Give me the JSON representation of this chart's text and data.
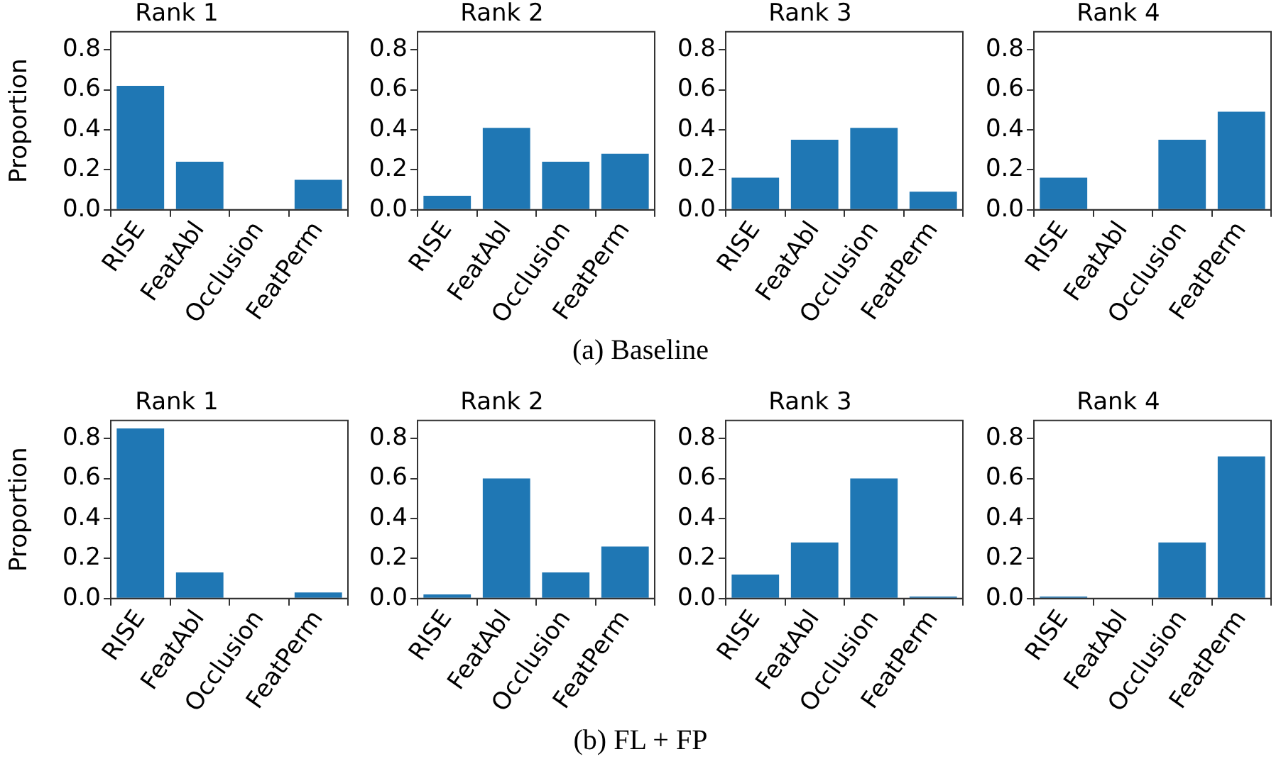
{
  "chart_data": [
    {
      "type": "bar",
      "title": "Rank 1",
      "ylabel": "Proportion",
      "categories": [
        "RISE",
        "FeatAbl",
        "Occlusion",
        "FeatPerm"
      ],
      "values": [
        0.62,
        0.24,
        0,
        0.15
      ],
      "color": "#1f77b4",
      "ylim": [
        0,
        0.89
      ],
      "yticks": [
        {
          "value": 0,
          "label": "0.0"
        },
        {
          "value": 0.2,
          "label": "0.2"
        },
        {
          "value": 0.4,
          "label": "0.4"
        },
        {
          "value": 0.6,
          "label": "0.6"
        },
        {
          "value": 0.8,
          "label": "0.8"
        }
      ]
    },
    {
      "type": "bar",
      "title": "Rank 2",
      "categories": [
        "RISE",
        "FeatAbl",
        "Occlusion",
        "FeatPerm"
      ],
      "values": [
        0.07,
        0.41,
        0.24,
        0.28
      ],
      "color": "#1f77b4",
      "ylim": [
        0,
        0.89
      ],
      "yticks": [
        {
          "value": 0,
          "label": "0.0"
        },
        {
          "value": 0.2,
          "label": "0.2"
        },
        {
          "value": 0.4,
          "label": "0.4"
        },
        {
          "value": 0.6,
          "label": "0.6"
        },
        {
          "value": 0.8,
          "label": "0.8"
        }
      ],
      "annotations": [
        "(a) Baseline"
      ]
    },
    {
      "type": "bar",
      "title": "Rank 3",
      "categories": [
        "RISE",
        "FeatAbl",
        "Occlusion",
        "FeatPerm"
      ],
      "values": [
        0.16,
        0.35,
        0.41,
        0.09
      ],
      "color": "#1f77b4",
      "ylim": [
        0,
        0.89
      ],
      "yticks": [
        {
          "value": 0,
          "label": "0.0"
        },
        {
          "value": 0.2,
          "label": "0.2"
        },
        {
          "value": 0.4,
          "label": "0.4"
        },
        {
          "value": 0.6,
          "label": "0.6"
        },
        {
          "value": 0.8,
          "label": "0.8"
        }
      ]
    },
    {
      "type": "bar",
      "title": "Rank 4",
      "categories": [
        "RISE",
        "FeatAbl",
        "Occlusion",
        "FeatPerm"
      ],
      "values": [
        0.16,
        0,
        0.35,
        0.49
      ],
      "color": "#1f77b4",
      "ylim": [
        0,
        0.89
      ],
      "yticks": [
        {
          "value": 0,
          "label": "0.0"
        },
        {
          "value": 0.2,
          "label": "0.2"
        },
        {
          "value": 0.4,
          "label": "0.4"
        },
        {
          "value": 0.6,
          "label": "0.6"
        },
        {
          "value": 0.8,
          "label": "0.8"
        }
      ]
    },
    {
      "type": "bar",
      "title": "Rank 1",
      "ylabel": "Proportion",
      "categories": [
        "RISE",
        "FeatAbl",
        "Occlusion",
        "FeatPerm"
      ],
      "values": [
        0.85,
        0.13,
        0,
        0.03
      ],
      "color": "#1f77b4",
      "ylim": [
        0,
        0.89
      ],
      "yticks": [
        {
          "value": 0,
          "label": "0.0"
        },
        {
          "value": 0.2,
          "label": "0.2"
        },
        {
          "value": 0.4,
          "label": "0.4"
        },
        {
          "value": 0.6,
          "label": "0.6"
        },
        {
          "value": 0.8,
          "label": "0.8"
        }
      ]
    },
    {
      "type": "bar",
      "title": "Rank 2",
      "categories": [
        "RISE",
        "FeatAbl",
        "Occlusion",
        "FeatPerm"
      ],
      "values": [
        0.02,
        0.6,
        0.13,
        0.26
      ],
      "color": "#1f77b4",
      "ylim": [
        0,
        0.89
      ],
      "yticks": [
        {
          "value": 0,
          "label": "0.0"
        },
        {
          "value": 0.2,
          "label": "0.2"
        },
        {
          "value": 0.4,
          "label": "0.4"
        },
        {
          "value": 0.6,
          "label": "0.6"
        },
        {
          "value": 0.8,
          "label": "0.8"
        }
      ],
      "annotations": [
        "(b) FL + FP"
      ]
    },
    {
      "type": "bar",
      "title": "Rank 3",
      "categories": [
        "RISE",
        "FeatAbl",
        "Occlusion",
        "FeatPerm"
      ],
      "values": [
        0.12,
        0.28,
        0.6,
        0.01
      ],
      "color": "#1f77b4",
      "ylim": [
        0,
        0.89
      ],
      "yticks": [
        {
          "value": 0,
          "label": "0.0"
        },
        {
          "value": 0.2,
          "label": "0.2"
        },
        {
          "value": 0.4,
          "label": "0.4"
        },
        {
          "value": 0.6,
          "label": "0.6"
        },
        {
          "value": 0.8,
          "label": "0.8"
        }
      ]
    },
    {
      "type": "bar",
      "title": "Rank 4",
      "categories": [
        "RISE",
        "FeatAbl",
        "Occlusion",
        "FeatPerm"
      ],
      "values": [
        0.01,
        0,
        0.28,
        0.71
      ],
      "color": "#1f77b4",
      "ylim": [
        0,
        0.89
      ],
      "yticks": [
        {
          "value": 0,
          "label": "0.0"
        },
        {
          "value": 0.2,
          "label": "0.2"
        },
        {
          "value": 0.4,
          "label": "0.4"
        },
        {
          "value": 0.6,
          "label": "0.6"
        },
        {
          "value": 0.8,
          "label": "0.8"
        }
      ]
    }
  ]
}
